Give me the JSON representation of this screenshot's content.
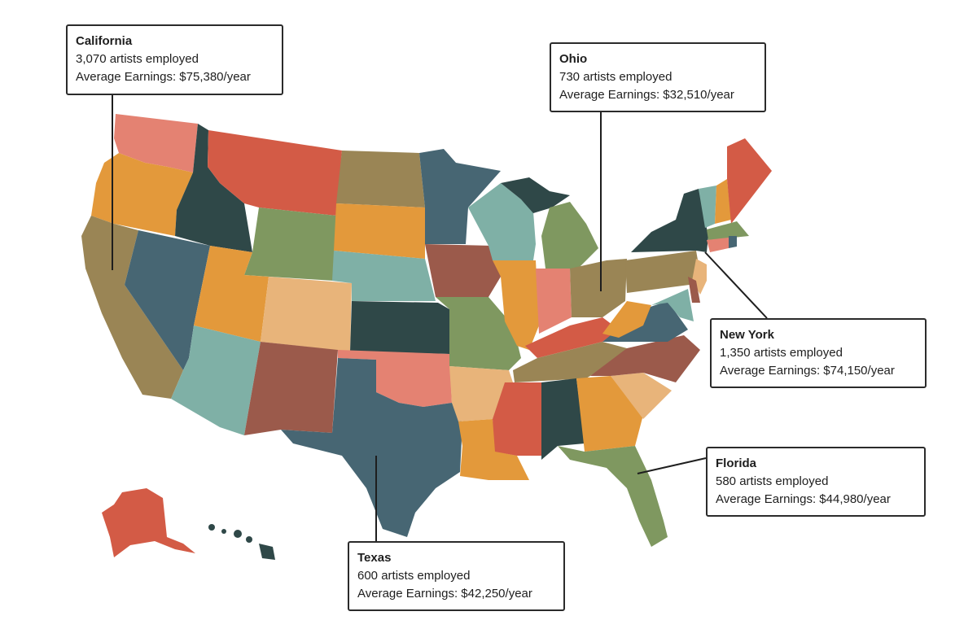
{
  "map": {
    "colors": {
      "salmon": "#e48272",
      "red": "#d35b46",
      "orange": "#e3993b",
      "peach": "#e8b47a",
      "olive": "#9a8555",
      "slate": "#476673",
      "dark": "#2f4848",
      "teal": "#7fb0a6",
      "green": "#7f9860",
      "brown": "#9b5a4b"
    }
  },
  "callouts": [
    {
      "id": "california",
      "state": "California",
      "artists": "3,070 artists employed",
      "earnings": "Average Earnings: $75,380/year"
    },
    {
      "id": "ohio",
      "state": "Ohio",
      "artists": "730 artists employed",
      "earnings": "Average Earnings: $32,510/year"
    },
    {
      "id": "newyork",
      "state": "New York",
      "artists": "1,350 artists employed",
      "earnings": "Average Earnings: $74,150/year"
    },
    {
      "id": "florida",
      "state": "Florida",
      "artists": "580 artists employed",
      "earnings": "Average Earnings: $44,980/year"
    },
    {
      "id": "texas",
      "state": "Texas",
      "artists": "600 artists employed",
      "earnings": "Average Earnings: $42,250/year"
    }
  ]
}
